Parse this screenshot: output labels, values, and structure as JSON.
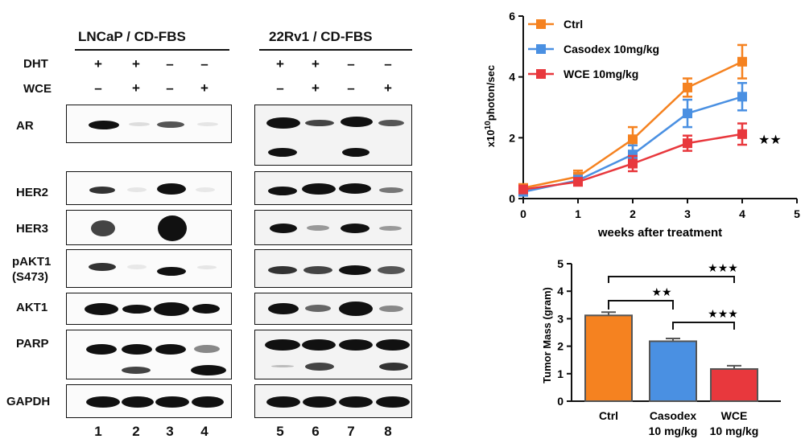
{
  "blots": {
    "left": {
      "title": "LNCaP / CD-FBS",
      "lanes": [
        "1",
        "2",
        "3",
        "4"
      ],
      "dht": [
        "+",
        "+",
        "–",
        "–"
      ],
      "wce": [
        "–",
        "+",
        "–",
        "+"
      ]
    },
    "right": {
      "title": "22Rv1 / CD-FBS",
      "lanes": [
        "5",
        "6",
        "7",
        "8"
      ],
      "dht": [
        "+",
        "+",
        "–",
        "–"
      ],
      "wce": [
        "–",
        "+",
        "–",
        "+"
      ]
    },
    "treatment_labels": {
      "dht": "DHT",
      "wce": "WCE"
    },
    "rows": [
      {
        "label": "AR"
      },
      {
        "label": "HER2"
      },
      {
        "label": "HER3"
      },
      {
        "label": "pAKT1",
        "label2": "(S473)"
      },
      {
        "label": "AKT1"
      },
      {
        "label": "PARP"
      },
      {
        "label": "GAPDH"
      }
    ]
  },
  "chart_data": [
    {
      "type": "line",
      "xlabel": "weeks after treatment",
      "ylabel": "x10",
      "ylabel_exponent": "10",
      "ylabel_unit": "photon/sec",
      "x": [
        0,
        1,
        2,
        3,
        4
      ],
      "xlim": [
        0,
        5
      ],
      "ylim": [
        0,
        6
      ],
      "xticks": [
        "0",
        "1",
        "2",
        "3",
        "4",
        "5"
      ],
      "yticks": [
        "0",
        "2",
        "4",
        "6"
      ],
      "legend_position": "top-left",
      "series": [
        {
          "name": "Ctrl",
          "color": "#f58220",
          "marker": "square",
          "values": [
            0.35,
            0.72,
            1.95,
            3.65,
            4.5
          ],
          "errors": [
            0.1,
            0.2,
            0.4,
            0.3,
            0.55
          ]
        },
        {
          "name": "Casodex 10mg/kg",
          "color": "#4a90e2",
          "marker": "square",
          "values": [
            0.22,
            0.6,
            1.45,
            2.8,
            3.35
          ],
          "errors": [
            0.08,
            0.15,
            0.3,
            0.45,
            0.45
          ]
        },
        {
          "name": "WCE 10mg/kg",
          "color": "#e8383d",
          "marker": "square",
          "values": [
            0.3,
            0.55,
            1.15,
            1.82,
            2.12
          ],
          "errors": [
            0.08,
            0.12,
            0.25,
            0.25,
            0.35
          ]
        }
      ],
      "annotation": "★★"
    },
    {
      "type": "bar",
      "ylabel": "Tumor Mass (gram)",
      "ylim": [
        0,
        5
      ],
      "yticks": [
        "0",
        "1",
        "2",
        "3",
        "4",
        "5"
      ],
      "categories": [
        {
          "line1": "Ctrl",
          "line2": ""
        },
        {
          "line1": "Casodex",
          "line2": "10 mg/kg"
        },
        {
          "line1": "WCE",
          "line2": "10 mg/kg"
        }
      ],
      "values": [
        3.12,
        2.18,
        1.17
      ],
      "errors": [
        0.12,
        0.1,
        0.12
      ],
      "colors": [
        "#f58220",
        "#4a90e2",
        "#e8383d"
      ],
      "significance": [
        {
          "from": 0,
          "to": 1,
          "label": "★★"
        },
        {
          "from": 0,
          "to": 2,
          "label": "★★★"
        },
        {
          "from": 1,
          "to": 2,
          "label": "★★★"
        }
      ]
    }
  ]
}
